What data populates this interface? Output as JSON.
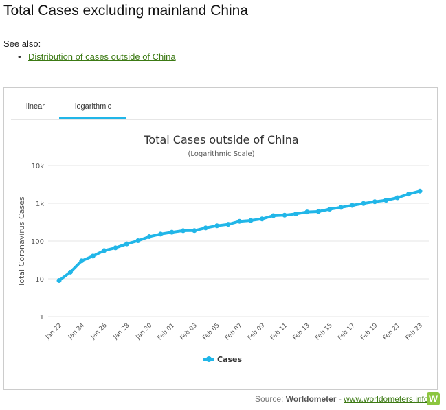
{
  "page": {
    "title": "Total Cases excluding mainland China",
    "see_also_label": "See also:",
    "see_also_links": [
      "Distribution of cases outside of China"
    ]
  },
  "tabs": {
    "linear_label": "linear",
    "log_label": "logarithmic",
    "active": "logarithmic"
  },
  "footer": {
    "source_prefix": "Source: ",
    "source_name": "Worldometer",
    "separator": " - ",
    "source_link": "www.worldometers.info",
    "logo_letter": "W"
  },
  "chart_data": {
    "type": "line",
    "title": "Total Cases outside of China",
    "subtitle": "(Logarithmic Scale)",
    "xlabel": "",
    "ylabel": "Total Coronavirus Cases",
    "y_scale": "log",
    "ylim": [
      1,
      10000
    ],
    "y_ticks": [
      1,
      10,
      100,
      1000,
      10000
    ],
    "y_tick_labels": [
      "1",
      "10",
      "100",
      "1k",
      "10k"
    ],
    "grid": true,
    "legend_position": "bottom-center",
    "color": "#21b6e8",
    "x": [
      "Jan 22",
      "Jan 23",
      "Jan 24",
      "Jan 25",
      "Jan 26",
      "Jan 27",
      "Jan 28",
      "Jan 29",
      "Jan 30",
      "Jan 31",
      "Feb 01",
      "Feb 02",
      "Feb 03",
      "Feb 04",
      "Feb 05",
      "Feb 06",
      "Feb 07",
      "Feb 08",
      "Feb 09",
      "Feb 10",
      "Feb 11",
      "Feb 12",
      "Feb 13",
      "Feb 14",
      "Feb 15",
      "Feb 16",
      "Feb 17",
      "Feb 18",
      "Feb 19",
      "Feb 20",
      "Feb 21",
      "Feb 22",
      "Feb 23"
    ],
    "x_tick_labels": [
      "Jan 22",
      "Jan 24",
      "Jan 26",
      "Jan 28",
      "Jan 30",
      "Feb 01",
      "Feb 03",
      "Feb 05",
      "Feb 07",
      "Feb 09",
      "Feb 11",
      "Feb 13",
      "Feb 15",
      "Feb 17",
      "Feb 19",
      "Feb 21",
      "Feb 23"
    ],
    "series": [
      {
        "name": "Cases",
        "values": [
          9,
          15,
          30,
          40,
          56,
          66,
          84,
          102,
          131,
          153,
          171,
          188,
          189,
          223,
          254,
          277,
          334,
          351,
          386,
          470,
          486,
          525,
          590,
          606,
          700,
          780,
          883,
          991,
          1100,
          1200,
          1400,
          1750,
          2100
        ]
      }
    ]
  }
}
